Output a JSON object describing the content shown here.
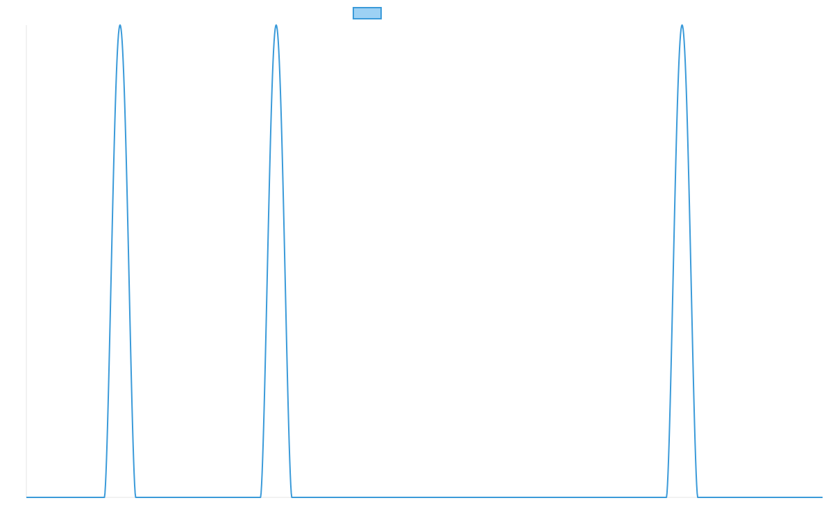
{
  "chart_data": {
    "type": "line",
    "title": "",
    "xlabel": "",
    "ylabel": "",
    "grid": false,
    "legend": "top-center",
    "xlim": [
      0,
      1020
    ],
    "ylim": [
      0,
      1
    ],
    "series": [
      {
        "color": "#3a9ad9",
        "fill": "#9dd1f4",
        "x": [
          0,
          100,
          110,
          120,
          130,
          140,
          300,
          310,
          320,
          330,
          340,
          820,
          830,
          840,
          850,
          860,
          1020
        ],
        "y": [
          0,
          0,
          0.5,
          1,
          0.5,
          0,
          0,
          0.5,
          1,
          0.5,
          0,
          0,
          0.5,
          1,
          0.5,
          0,
          0
        ]
      }
    ]
  },
  "legend": {
    "series_label": ""
  }
}
